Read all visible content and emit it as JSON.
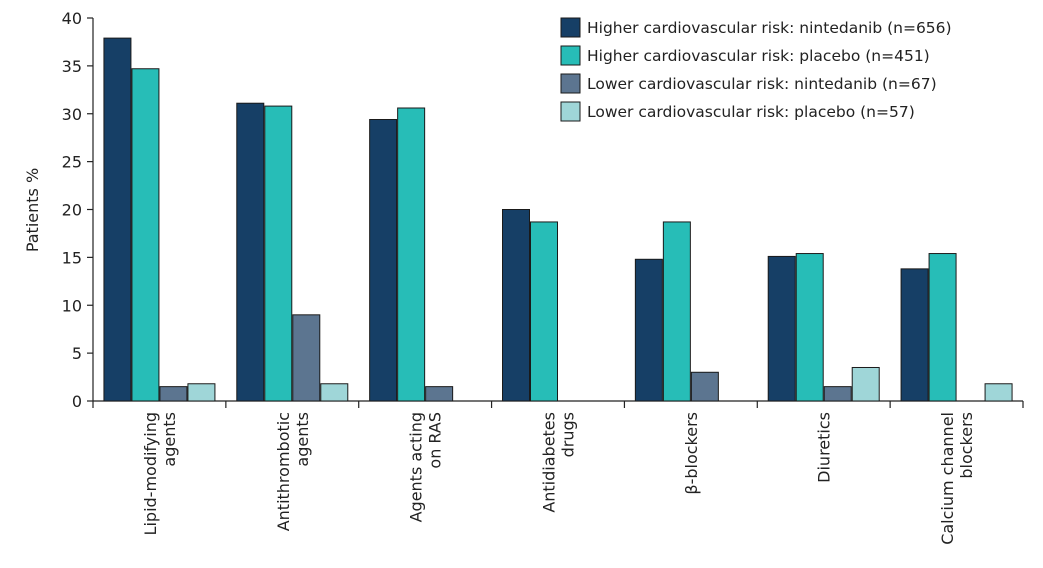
{
  "chart_data": {
    "type": "bar",
    "title": "",
    "xlabel": "",
    "ylabel": "Patients %",
    "ylim": [
      0,
      40
    ],
    "yticks": [
      0,
      5,
      10,
      15,
      20,
      25,
      30,
      35,
      40
    ],
    "grid": false,
    "legend_position": "top-right",
    "categories": [
      [
        "Lipid-modifying",
        "agents"
      ],
      [
        "Antithrombotic",
        "agents"
      ],
      [
        "Agents acting",
        "on RAS"
      ],
      [
        "Antidiabetes",
        "drugs"
      ],
      [
        "β-blockers"
      ],
      [
        "Diuretics"
      ],
      [
        "Calcium channel",
        "blockers"
      ]
    ],
    "series": [
      {
        "name": "Higher cardiovascular risk: nintedanib (n=656)",
        "color": "#163f66",
        "values": [
          37.9,
          31.1,
          29.4,
          20.0,
          14.8,
          15.1,
          13.8
        ]
      },
      {
        "name": "Higher cardiovascular risk: placebo (n=451)",
        "color": "#27bdb7",
        "values": [
          34.7,
          30.8,
          30.6,
          18.7,
          18.7,
          15.4,
          15.4
        ]
      },
      {
        "name": "Lower cardiovascular risk: nintedanib (n=67)",
        "color": "#5c7590",
        "values": [
          1.5,
          9.0,
          1.5,
          0,
          3.0,
          1.5,
          0
        ]
      },
      {
        "name": "Lower cardiovascular risk: placebo (n=57)",
        "color": "#9fd6d8",
        "values": [
          1.8,
          1.8,
          0,
          0,
          0,
          3.5,
          1.8
        ]
      }
    ]
  }
}
